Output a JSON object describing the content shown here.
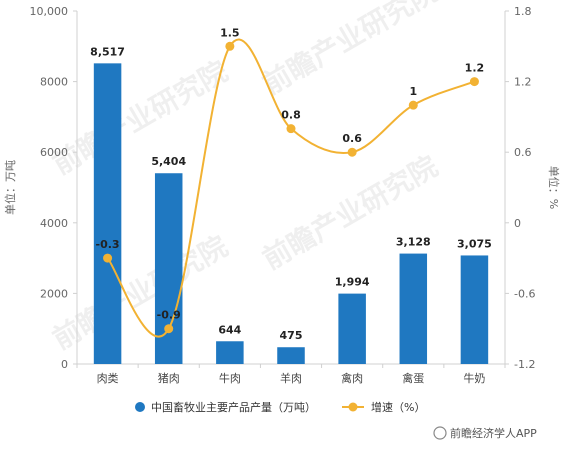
{
  "chart_data": {
    "type": "bar",
    "categories": [
      "肉类",
      "猪肉",
      "牛肉",
      "羊肉",
      "禽肉",
      "禽蛋",
      "牛奶"
    ],
    "series": [
      {
        "name": "中国畜牧业主要产品产量（万吨）",
        "type": "bar",
        "axis": "left",
        "color": "#1f78c1",
        "values": [
          8517,
          5404,
          644,
          475,
          1994,
          3128,
          3075
        ],
        "labels": [
          "8,517",
          "5,404",
          "644",
          "475",
          "1,994",
          "3,128",
          "3,075"
        ]
      },
      {
        "name": "增速（%）",
        "type": "line",
        "axis": "right",
        "color": "#f2b233",
        "values": [
          -0.3,
          -0.9,
          1.5,
          0.8,
          0.6,
          1,
          1.2
        ],
        "labels": [
          "-0.3",
          "-0.9",
          "1.5",
          "0.8",
          "0.6",
          "1",
          "1.2"
        ]
      }
    ],
    "y_left": {
      "label": "单位：万吨",
      "ylim": [
        0,
        10000
      ],
      "ticks": [
        0,
        2000,
        4000,
        6000,
        8000,
        10000
      ],
      "tick_labels": [
        "0",
        "2000",
        "4000",
        "6000",
        "8000",
        "10,000"
      ]
    },
    "y_right": {
      "label": "单位：%",
      "ylim": [
        -1.2,
        1.8
      ],
      "ticks": [
        -1.2,
        -0.6,
        0,
        0.6,
        1.2,
        1.8
      ],
      "tick_labels": [
        "-1.2",
        "-0.6",
        "0",
        "0.6",
        "1.2",
        "1.8"
      ]
    },
    "grid": false,
    "legend": "bottom"
  },
  "watermark": "前瞻产业研究院",
  "credit": "前瞻经济学人APP"
}
